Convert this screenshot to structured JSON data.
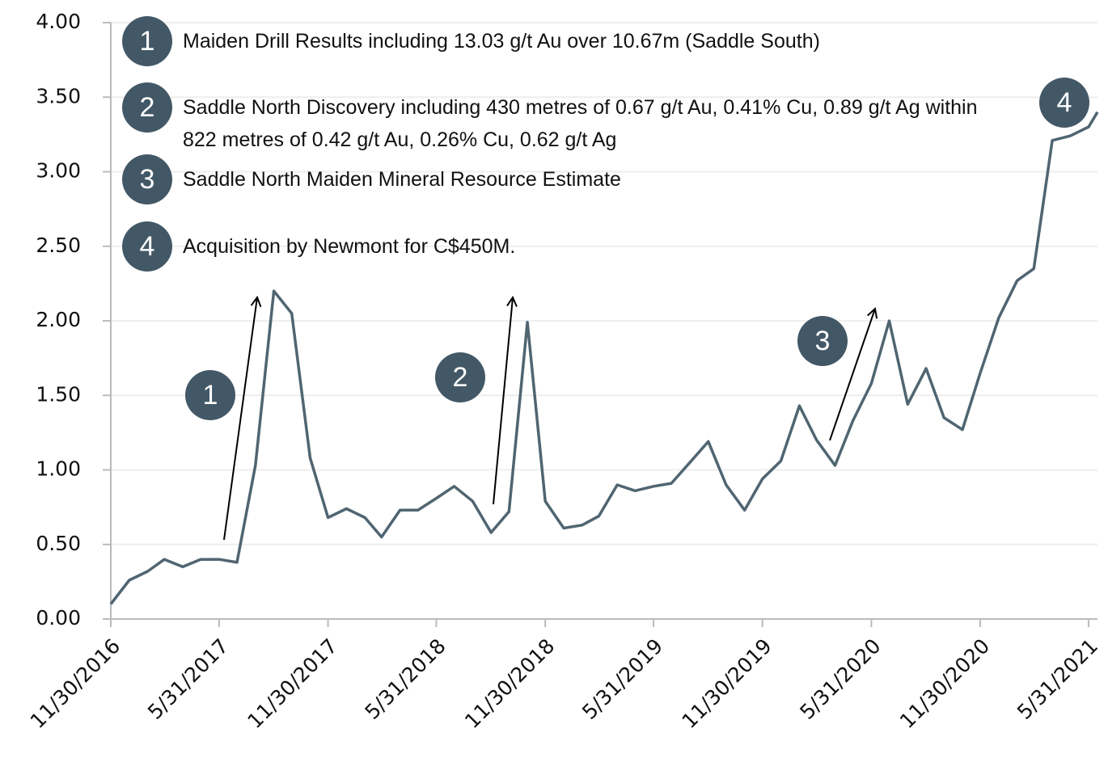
{
  "chart_data": {
    "type": "line",
    "x": [
      "11/30/2016",
      "12/31/2016",
      "1/31/2017",
      "2/28/2017",
      "3/31/2017",
      "4/30/2017",
      "5/31/2017",
      "6/30/2017",
      "7/31/2017",
      "8/31/2017",
      "9/30/2017",
      "10/31/2017",
      "11/30/2017",
      "12/31/2017",
      "1/31/2018",
      "2/28/2018",
      "3/31/2018",
      "4/30/2018",
      "5/31/2018",
      "6/30/2018",
      "7/31/2018",
      "8/31/2018",
      "9/30/2018",
      "10/31/2018",
      "11/30/2018",
      "12/31/2018",
      "1/31/2019",
      "2/28/2019",
      "3/31/2019",
      "4/30/2019",
      "5/31/2019",
      "6/30/2019",
      "7/31/2019",
      "8/31/2019",
      "9/30/2019",
      "10/31/2019",
      "11/30/2019",
      "12/31/2019",
      "1/31/2020",
      "2/29/2020",
      "3/31/2020",
      "4/30/2020",
      "5/31/2020",
      "6/30/2020",
      "7/31/2020",
      "8/31/2020",
      "9/30/2020",
      "10/31/2020",
      "11/30/2020",
      "12/31/2020",
      "1/31/2021",
      "2/28/2021",
      "3/31/2021",
      "4/30/2021",
      "5/31/2021",
      "6/15/2021"
    ],
    "values": [
      0.1,
      0.26,
      0.32,
      0.4,
      0.35,
      0.4,
      0.4,
      0.38,
      1.03,
      2.2,
      2.05,
      1.08,
      0.68,
      0.74,
      0.68,
      0.55,
      0.73,
      0.73,
      0.81,
      0.89,
      0.79,
      0.58,
      0.72,
      1.99,
      0.79,
      0.61,
      0.63,
      0.69,
      0.9,
      0.86,
      0.89,
      0.91,
      1.05,
      1.19,
      0.9,
      0.73,
      0.94,
      1.06,
      1.43,
      1.2,
      1.03,
      1.33,
      1.58,
      2.0,
      1.44,
      1.68,
      1.35,
      1.27,
      1.65,
      2.02,
      2.27,
      2.35,
      3.21,
      3.24,
      3.3,
      3.4
    ],
    "color": "#506571",
    "xlim": [
      "11/30/2016",
      "6/15/2021"
    ],
    "xticks": [
      "11/30/2016",
      "5/31/2017",
      "11/30/2017",
      "5/31/2018",
      "11/30/2018",
      "5/31/2019",
      "11/30/2019",
      "5/31/2020",
      "11/30/2020",
      "5/31/2021"
    ],
    "ylim": [
      0,
      4
    ],
    "yticks": [
      {
        "value": 0,
        "label": "0.00"
      },
      {
        "value": 0.5,
        "label": "0.50"
      },
      {
        "value": 1,
        "label": "1.00"
      },
      {
        "value": 1.5,
        "label": "1.50"
      },
      {
        "value": 2,
        "label": "2.00"
      },
      {
        "value": 2.5,
        "label": "2.50"
      },
      {
        "value": 3,
        "label": "3.00"
      },
      {
        "value": 3.5,
        "label": "3.50"
      },
      {
        "value": 4,
        "label": "4.00"
      }
    ],
    "grid": true,
    "notes": [
      {
        "number": "1",
        "text": "Maiden Drill Results including 13.03 g/t Au over 10.67m (Saddle South)"
      },
      {
        "number": "2",
        "text": "Saddle North Discovery including 430 metres of 0.67 g/t Au, 0.41% Cu, 0.89 g/t Ag within 822 metres of 0.42 g/t Au, 0.26% Cu, 0.62 g/t Ag"
      },
      {
        "number": "3",
        "text": "Saddle North Maiden Mineral Resource Estimate"
      },
      {
        "number": "4",
        "text": "Acquisition by Newmont for C$450M."
      }
    ]
  }
}
